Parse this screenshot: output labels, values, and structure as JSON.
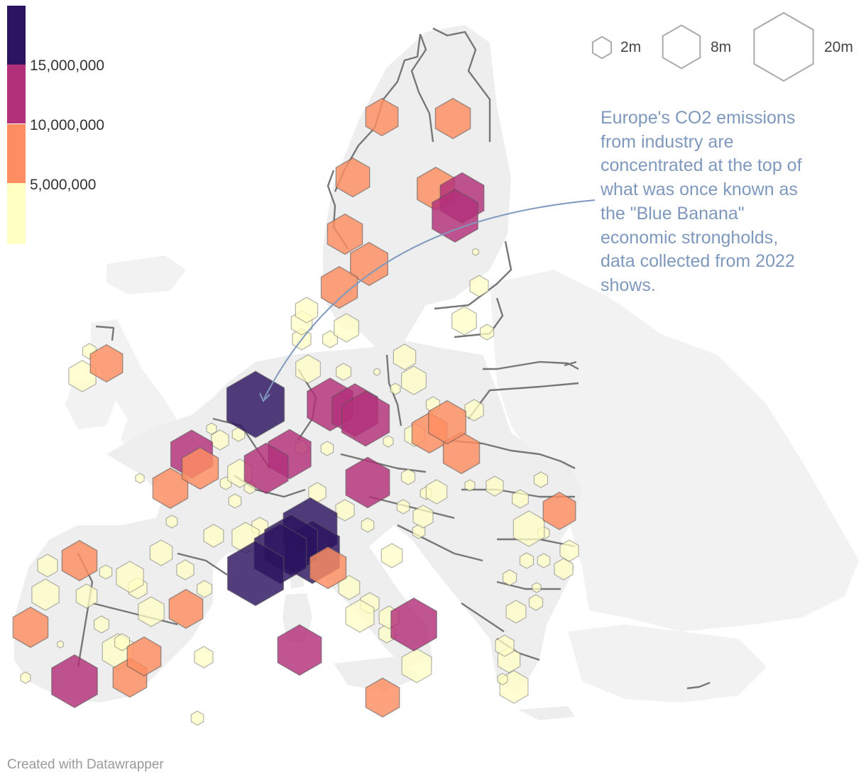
{
  "legend": {
    "ticks": [
      "15,000,000",
      "10,000,000",
      "5,000,000"
    ],
    "bins": [
      {
        "from": 0,
        "to": 5000000,
        "color": "#ffffc4"
      },
      {
        "from": 5000000,
        "to": 10000000,
        "color": "#fe8d62"
      },
      {
        "from": 10000000,
        "to": 15000000,
        "color": "#b2307a"
      },
      {
        "from": 15000000,
        "to": 20000000,
        "color": "#2c1460"
      }
    ]
  },
  "size_legend": {
    "items": [
      {
        "label": "2m",
        "value": 2000000
      },
      {
        "label": "8m",
        "value": 8000000
      },
      {
        "label": "20m",
        "value": 20000000
      }
    ]
  },
  "annotation": {
    "lines": [
      "Europe's CO2 emissions",
      "from industry are",
      "concentrated at the top of",
      "what was once known as",
      "the \"Blue Banana\"",
      "economic strongholds,",
      "data collected from 2022",
      "shows."
    ]
  },
  "credit": "Created with Datawrapper",
  "chart_data": {
    "type": "hexbin-map",
    "region": "Europe",
    "bins": [
      {
        "region": "Sweden north",
        "value": 6000000
      },
      {
        "region": "Finland north",
        "value": 7000000
      },
      {
        "region": "Sweden central",
        "value": 6500000
      },
      {
        "region": "Finland south-west",
        "value": 8000000
      },
      {
        "region": "Finland south-east",
        "value": 11000000
      },
      {
        "region": "Finland south",
        "value": 12000000
      },
      {
        "region": "Sweden south-central",
        "value": 7000000
      },
      {
        "region": "Sweden Stockholm",
        "value": 8000000
      },
      {
        "region": "Sweden south",
        "value": 7500000
      },
      {
        "region": "Scotland",
        "value": 6000000
      },
      {
        "region": "Netherlands / Germany Ruhr",
        "value": 19000000
      },
      {
        "region": "Germany central",
        "value": 12000000
      },
      {
        "region": "Germany east",
        "value": 12000000
      },
      {
        "region": "Germany north-east",
        "value": 13000000
      },
      {
        "region": "Belgium",
        "value": 10500000
      },
      {
        "region": "Germany west",
        "value": 10000000
      },
      {
        "region": "Germany south",
        "value": 11000000
      },
      {
        "region": "Poland west",
        "value": 7000000
      },
      {
        "region": "Poland south",
        "value": 7500000
      },
      {
        "region": "Czechia",
        "value": 8000000
      },
      {
        "region": "Austria",
        "value": 11000000
      },
      {
        "region": "France north",
        "value": 7000000
      },
      {
        "region": "France north-west",
        "value": 7500000
      },
      {
        "region": "Northern Italy",
        "value": 16500000
      },
      {
        "region": "Italy north-west",
        "value": 17000000
      },
      {
        "region": "Italy Emilia",
        "value": 16000000
      },
      {
        "region": "Italy Veneto",
        "value": 15500000
      },
      {
        "region": "France south",
        "value": 18000000
      },
      {
        "region": "Italy Tuscany",
        "value": 7500000
      },
      {
        "region": "Spain north",
        "value": 7000000
      },
      {
        "region": "Spain north-east",
        "value": 7000000
      },
      {
        "region": "Portugal north",
        "value": 6500000
      },
      {
        "region": "Spain south-west",
        "value": 12000000
      },
      {
        "region": "Spain south-east",
        "value": 6500000
      },
      {
        "region": "Sardinia",
        "value": 6500000
      },
      {
        "region": "Italy south",
        "value": 11000000
      },
      {
        "region": "Sicily",
        "value": 12000000
      },
      {
        "region": "Romania east",
        "value": 6500000
      },
      {
        "region": "Greece south",
        "value": 6000000
      }
    ]
  }
}
